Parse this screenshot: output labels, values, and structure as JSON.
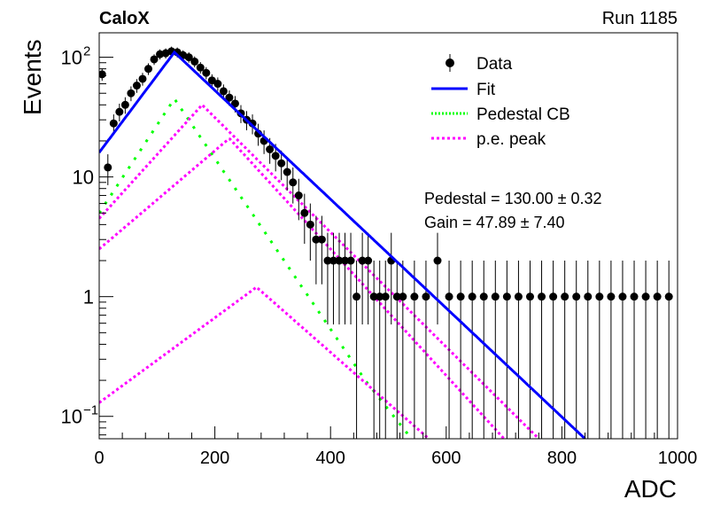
{
  "header": {
    "experiment": "CaloX",
    "run_label": "Run 1185"
  },
  "legend": {
    "items": [
      {
        "label": "Data",
        "kind": "marker",
        "color": "#000000"
      },
      {
        "label": "Fit",
        "kind": "line",
        "color": "#0000ff"
      },
      {
        "label": "Pedestal CB",
        "kind": "dotted",
        "color": "#00ff00"
      },
      {
        "label": "p.e. peak",
        "kind": "dashed",
        "color": "#ff00ff"
      }
    ]
  },
  "stats": {
    "pedestal_label": "Pedestal",
    "pedestal_value": "130.00",
    "pedestal_error": "0.32",
    "gain_label": "Gain",
    "gain_value": "47.89",
    "gain_error": "7.40"
  },
  "chart_data": {
    "type": "scatter",
    "xlabel": "ADC",
    "ylabel": "Events",
    "xlim": [
      0,
      1000
    ],
    "ylim": [
      0.065,
      160
    ],
    "yscale": "log",
    "x_ticks": [
      0,
      200,
      400,
      600,
      800,
      1000
    ],
    "y_ticks": [
      {
        "value": 0.1,
        "label": "10",
        "exp": "−1"
      },
      {
        "value": 1,
        "label": "1",
        "exp": ""
      },
      {
        "value": 10,
        "label": "10",
        "exp": ""
      },
      {
        "value": 100,
        "label": "10",
        "exp": "2"
      }
    ],
    "series": [
      {
        "name": "Data",
        "color": "#000000",
        "x": [
          5,
          15,
          25,
          35,
          45,
          55,
          65,
          75,
          85,
          95,
          105,
          115,
          125,
          135,
          145,
          155,
          165,
          175,
          185,
          195,
          205,
          215,
          225,
          235,
          245,
          255,
          265,
          275,
          285,
          295,
          305,
          315,
          325,
          335,
          345,
          355,
          365,
          375,
          385,
          395,
          405,
          415,
          425,
          435,
          445,
          455,
          465,
          475,
          485,
          495,
          505,
          515,
          525,
          545,
          565,
          585,
          605,
          625,
          645,
          665,
          685,
          705,
          725,
          745,
          765,
          785,
          805,
          825,
          845,
          865,
          885,
          905,
          925,
          945,
          965,
          985
        ],
        "y": [
          72,
          12,
          28,
          35,
          40,
          50,
          58,
          66,
          80,
          96,
          106,
          108,
          112,
          110,
          104,
          100,
          92,
          82,
          74,
          64,
          60,
          52,
          46,
          41,
          34,
          30,
          28,
          23,
          20,
          17,
          15,
          13,
          11,
          9,
          7,
          5,
          4,
          3,
          3,
          2,
          2,
          2,
          2,
          2,
          1,
          2,
          2,
          1,
          1,
          1,
          2,
          1,
          1,
          1,
          1,
          2,
          1,
          1,
          1,
          1,
          1,
          1,
          1,
          1,
          1,
          1,
          1,
          1,
          1,
          1,
          1,
          1,
          1,
          1,
          1,
          1
        ]
      },
      {
        "name": "Fit",
        "color": "#0000ff",
        "x": [
          0,
          130,
          840
        ],
        "y": [
          16,
          110,
          0.065
        ]
      },
      {
        "name": "Pedestal CB",
        "color": "#00ff00",
        "x": [
          0,
          130,
          460,
          540
        ],
        "y": [
          5,
          45,
          0.2,
          0.065
        ]
      },
      {
        "name": "p.e. peak",
        "color": "#ff00ff",
        "peaks": [
          {
            "x": [
              0,
              178,
              760
            ],
            "y": [
              4.5,
              40,
              0.065
            ]
          },
          {
            "x": [
              0,
              225,
              700
            ],
            "y": [
              2.5,
              21,
              0.065
            ]
          },
          {
            "x": [
              0,
              272,
              570
            ],
            "y": [
              0.13,
              1.2,
              0.065
            ]
          }
        ]
      }
    ]
  }
}
